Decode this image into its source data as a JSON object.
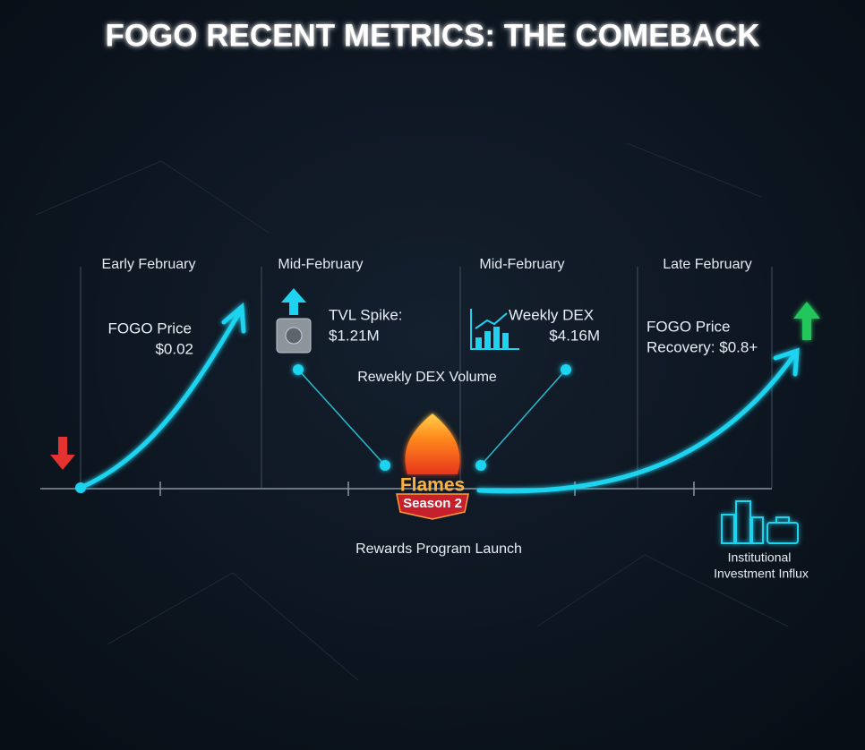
{
  "header": {
    "title": "FOGO RECENT METRICS: THE COMEBACK"
  },
  "timeline": {
    "periods": [
      "Early February",
      "Mid-February",
      "Mid-February",
      "Late February"
    ]
  },
  "metrics": [
    {
      "label": "FOGO Price",
      "value": "$0.02"
    },
    {
      "label": "TVL Spike:",
      "value": "$1.21M"
    },
    {
      "label": "Weekly DEX",
      "value": "$4.16M"
    },
    {
      "label": "FOGO Price",
      "value": "Recovery: $0.8+"
    }
  ],
  "center": {
    "caption": "Rewekly DEX Volume",
    "badge_top": "Flames",
    "badge_bottom": "Season 2",
    "event": "Rewards Program Launch"
  },
  "institutional": {
    "line1": "Institutional",
    "line2": "Investment Influx"
  }
}
